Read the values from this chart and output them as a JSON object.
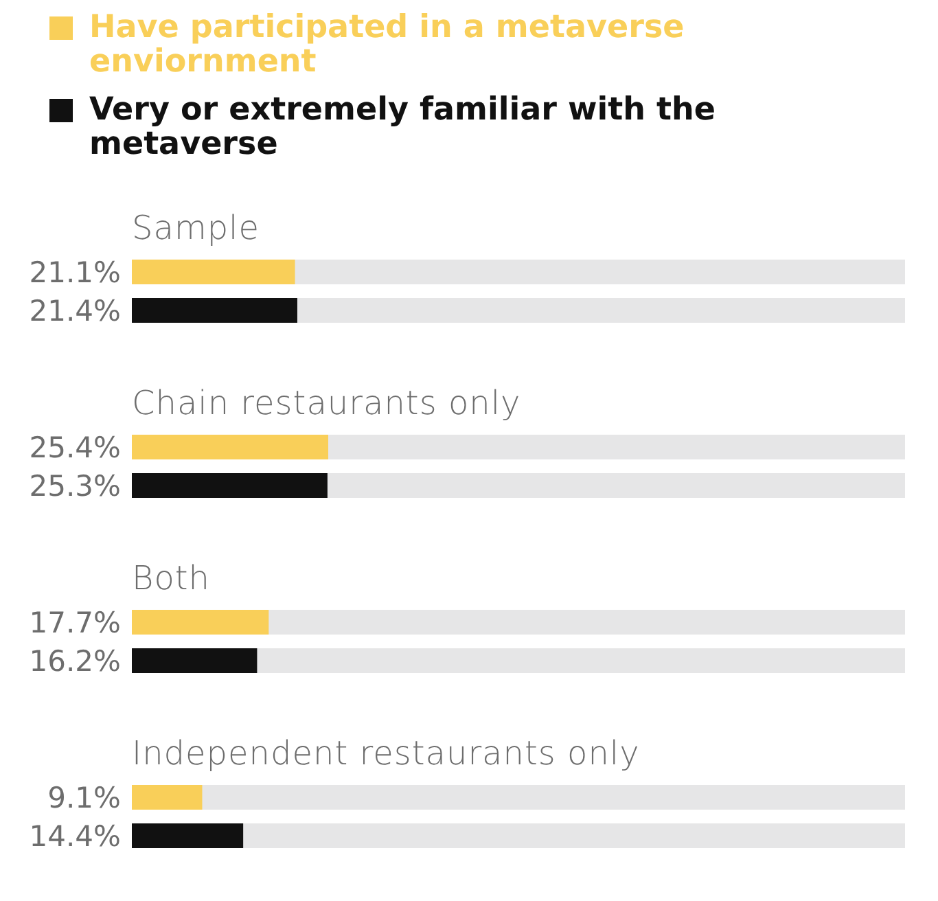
{
  "chart_data": {
    "type": "bar",
    "orientation": "horizontal",
    "categories": [
      "Sample",
      "Chain restaurants only",
      "Both",
      "Independent restaurants only"
    ],
    "series": [
      {
        "name": "Have participated in a metaverse enviornment",
        "color": "#f9cf59",
        "values": [
          21.1,
          25.4,
          17.7,
          9.1
        ],
        "value_labels": [
          "21.1%",
          "25.4%",
          "17.7%",
          "9.1%"
        ]
      },
      {
        "name": "Very or extremely familiar with the metaverse",
        "color": "#111111",
        "values": [
          21.4,
          25.3,
          16.2,
          14.4
        ],
        "value_labels": [
          "21.4%",
          "25.3%",
          "16.2%",
          "14.4%"
        ]
      }
    ],
    "xlim": [
      0,
      100
    ],
    "legend": "top left",
    "tick_labels": false
  }
}
